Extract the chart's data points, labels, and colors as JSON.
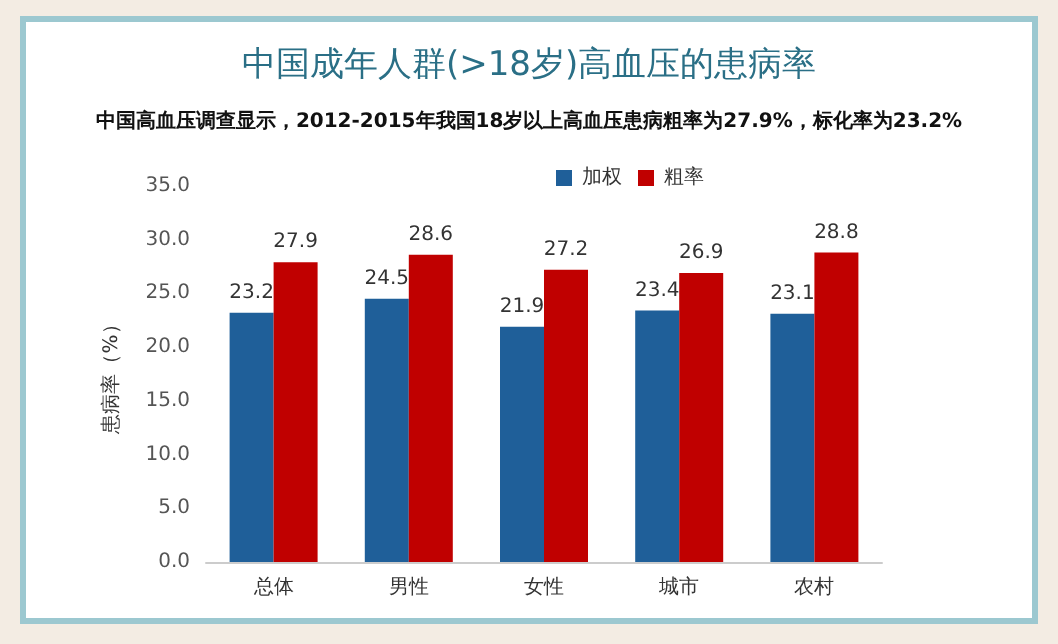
{
  "chart_data": {
    "type": "bar",
    "title": "中国成年人群(>18岁)高血压的患病率",
    "subtitle": "中国高血压调查显示，2012-2015年我国18岁以上高血压患病粗率为27.9%，标化率为23.2%",
    "ylabel": "患病率（%）",
    "categories": [
      "总体",
      "男性",
      "女性",
      "城市",
      "农村"
    ],
    "series": [
      {
        "name": "加权",
        "color": "#1f5f99",
        "values": [
          23.2,
          24.5,
          21.9,
          23.4,
          23.1
        ]
      },
      {
        "name": "粗率",
        "color": "#c00000",
        "values": [
          27.9,
          28.6,
          27.2,
          26.9,
          28.8
        ]
      }
    ],
    "ylim": [
      0,
      35
    ],
    "yticks": [
      {
        "value": 0,
        "label": "0.0"
      },
      {
        "value": 5,
        "label": "5.0"
      },
      {
        "value": 10,
        "label": "10.0"
      },
      {
        "value": 15,
        "label": "15.0"
      },
      {
        "value": 20,
        "label": "20.0"
      },
      {
        "value": 25,
        "label": "25.0"
      },
      {
        "value": 30,
        "label": "30.0"
      },
      {
        "value": 35,
        "label": "35.0"
      }
    ],
    "grid": false,
    "legend": "top",
    "data_labels": true
  }
}
